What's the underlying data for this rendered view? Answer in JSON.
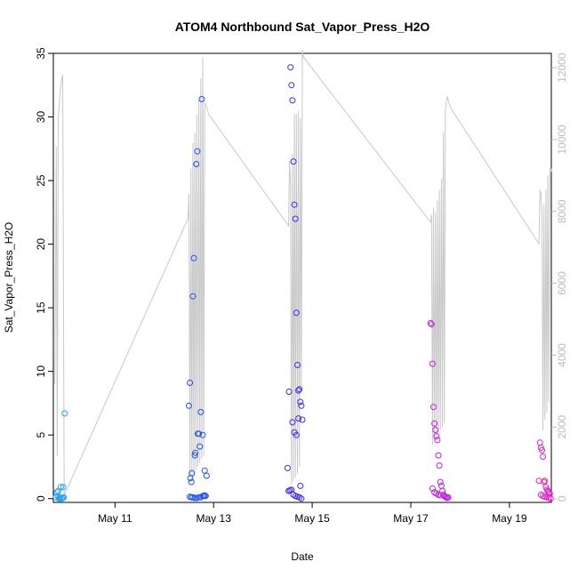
{
  "chart_data": {
    "type": "scatter",
    "title": "ATOM4 Northbound Sat_Vapor_Press_H2O",
    "xlabel": "Date",
    "ylabel": "Sat_Vapor_Press_H2O",
    "x_tick_labels": [
      "May 11",
      "May 13",
      "May 15",
      "May 17",
      "May 19"
    ],
    "y_ticks": [
      0,
      5,
      10,
      15,
      20,
      25,
      30,
      35
    ],
    "y_right_ticks": [
      0,
      2000,
      4000,
      6000,
      8000,
      10000,
      12000
    ],
    "ylim": [
      -0.3,
      35
    ],
    "y_right_lim": [
      -100,
      12400
    ],
    "xlim": [
      9.75,
      19.85
    ],
    "grid": false,
    "colors": {
      "axis": "#000000",
      "right_axis": "#bbbbbb",
      "grey_line": "#c8c8c8",
      "point_ramp": [
        "#1ea0f0",
        "#2050f0",
        "#3a2cf0",
        "#7a2cf0",
        "#c020e0",
        "#e020c8"
      ]
    },
    "grey_series": {
      "x": [
        9.78,
        9.81,
        9.83,
        9.85,
        9.88,
        9.91,
        9.94,
        9.97,
        12.48,
        12.5,
        12.52,
        12.54,
        12.56,
        12.58,
        12.6,
        12.62,
        12.64,
        12.66,
        12.68,
        12.7,
        12.72,
        12.74,
        12.76,
        12.78,
        12.8,
        12.82,
        12.84,
        12.86,
        12.88,
        12.9,
        14.52,
        14.54,
        14.56,
        14.58,
        14.6,
        14.62,
        14.64,
        14.66,
        14.68,
        14.7,
        14.72,
        14.74,
        14.76,
        14.78,
        14.8,
        14.82,
        17.4,
        17.42,
        17.44,
        17.46,
        17.48,
        17.5,
        17.52,
        17.54,
        17.56,
        17.58,
        17.6,
        17.62,
        17.64,
        17.66,
        17.68,
        17.7,
        17.72,
        17.74,
        17.76,
        17.78,
        17.8,
        19.6,
        19.62,
        19.64,
        19.66,
        19.68,
        19.7,
        19.72,
        19.74,
        19.76,
        19.78,
        19.8,
        19.82,
        19.84,
        19.86
      ],
      "y": [
        3200,
        9800,
        1200,
        10600,
        11200,
        11600,
        11800,
        100,
        7800,
        8500,
        600,
        9200,
        500,
        9900,
        700,
        10200,
        800,
        10700,
        900,
        11100,
        1000,
        11700,
        1100,
        12300,
        1200,
        11000,
        11000,
        10900,
        10800,
        10700,
        7600,
        9400,
        8800,
        400,
        9600,
        500,
        10700,
        600,
        10700,
        700,
        10800,
        900,
        10600,
        3000,
        12500,
        12300,
        7700,
        7900,
        1500,
        8100,
        1600,
        8000,
        1700,
        8300,
        1800,
        8600,
        1900,
        8900,
        2000,
        10200,
        2100,
        10800,
        11000,
        11200,
        11100,
        11000,
        10900,
        7100,
        8600,
        8500,
        7800,
        1900,
        8200,
        2200,
        8600,
        2400,
        9000,
        2700,
        9200,
        9100,
        9200
      ]
    },
    "series": [
      {
        "x": [
          9.8,
          9.82,
          9.84,
          9.86,
          9.88,
          9.9,
          9.92,
          9.94,
          9.96,
          9.98,
          9.85,
          9.89,
          9.95
        ],
        "y": [
          0.1,
          0.5,
          0.2,
          0.0,
          0.1,
          0.9,
          0.0,
          0.05,
          0.1,
          6.7,
          0.6,
          0.0,
          0.9
        ]
      },
      {
        "x": [
          12.5,
          12.52,
          12.53,
          12.55,
          12.56,
          12.58,
          12.6,
          12.62,
          12.63,
          12.65,
          12.67,
          12.68,
          12.7,
          12.72,
          12.74,
          12.76,
          12.78,
          12.8,
          12.82,
          12.84,
          12.52,
          12.55,
          12.58,
          12.62,
          12.66,
          12.7,
          12.74,
          12.78,
          12.82,
          12.86
        ],
        "y": [
          7.3,
          9.1,
          1.6,
          1.3,
          2.0,
          15.9,
          18.9,
          3.4,
          3.6,
          26.3,
          27.3,
          5.1,
          5.1,
          4.1,
          6.8,
          31.4,
          5.0,
          0.2,
          0.25,
          0.2,
          0.15,
          0.1,
          0.1,
          0.05,
          0.05,
          0.1,
          0.1,
          0.2,
          2.2,
          1.8
        ]
      },
      {
        "x": [
          14.5,
          14.53,
          14.56,
          14.58,
          14.6,
          14.62,
          14.64,
          14.66,
          14.68,
          14.7,
          14.72,
          14.74,
          14.76,
          14.78,
          14.8,
          14.52,
          14.55,
          14.58,
          14.62,
          14.66,
          14.7,
          14.74,
          14.78,
          14.6,
          14.64,
          14.68,
          14.72,
          14.76
        ],
        "y": [
          2.4,
          8.4,
          33.9,
          32.5,
          31.3,
          26.5,
          23.1,
          22.0,
          14.6,
          10.5,
          8.5,
          8.6,
          7.6,
          7.3,
          6.2,
          0.6,
          0.65,
          0.7,
          0.3,
          0.2,
          0.15,
          0.1,
          0.0,
          6.0,
          5.2,
          5.0,
          6.3,
          1.0
        ]
      },
      {
        "x": [
          17.4,
          17.42,
          17.44,
          17.46,
          17.48,
          17.5,
          17.52,
          17.54,
          17.56,
          17.58,
          17.6,
          17.62,
          17.64,
          17.66,
          17.68,
          17.7,
          17.72,
          17.74,
          17.76,
          17.44,
          17.48,
          17.52,
          17.56,
          17.6
        ],
        "y": [
          13.8,
          13.7,
          10.6,
          7.2,
          5.9,
          5.4,
          4.9,
          4.6,
          3.4,
          2.6,
          1.3,
          1.0,
          0.6,
          0.3,
          0.2,
          0.15,
          0.1,
          0.05,
          0.1,
          0.8,
          0.5,
          0.4,
          0.3,
          0.25
        ]
      },
      {
        "x": [
          19.6,
          19.62,
          19.64,
          19.66,
          19.68,
          19.7,
          19.72,
          19.74,
          19.76,
          19.78,
          19.8,
          19.82,
          19.64,
          19.68,
          19.72,
          19.76,
          19.8,
          19.84
        ],
        "y": [
          1.4,
          4.4,
          4.0,
          3.8,
          3.3,
          1.3,
          1.4,
          0.9,
          0.7,
          0.6,
          0.5,
          0.4,
          0.3,
          0.2,
          0.15,
          0.1,
          0.05,
          0.0
        ]
      }
    ]
  }
}
